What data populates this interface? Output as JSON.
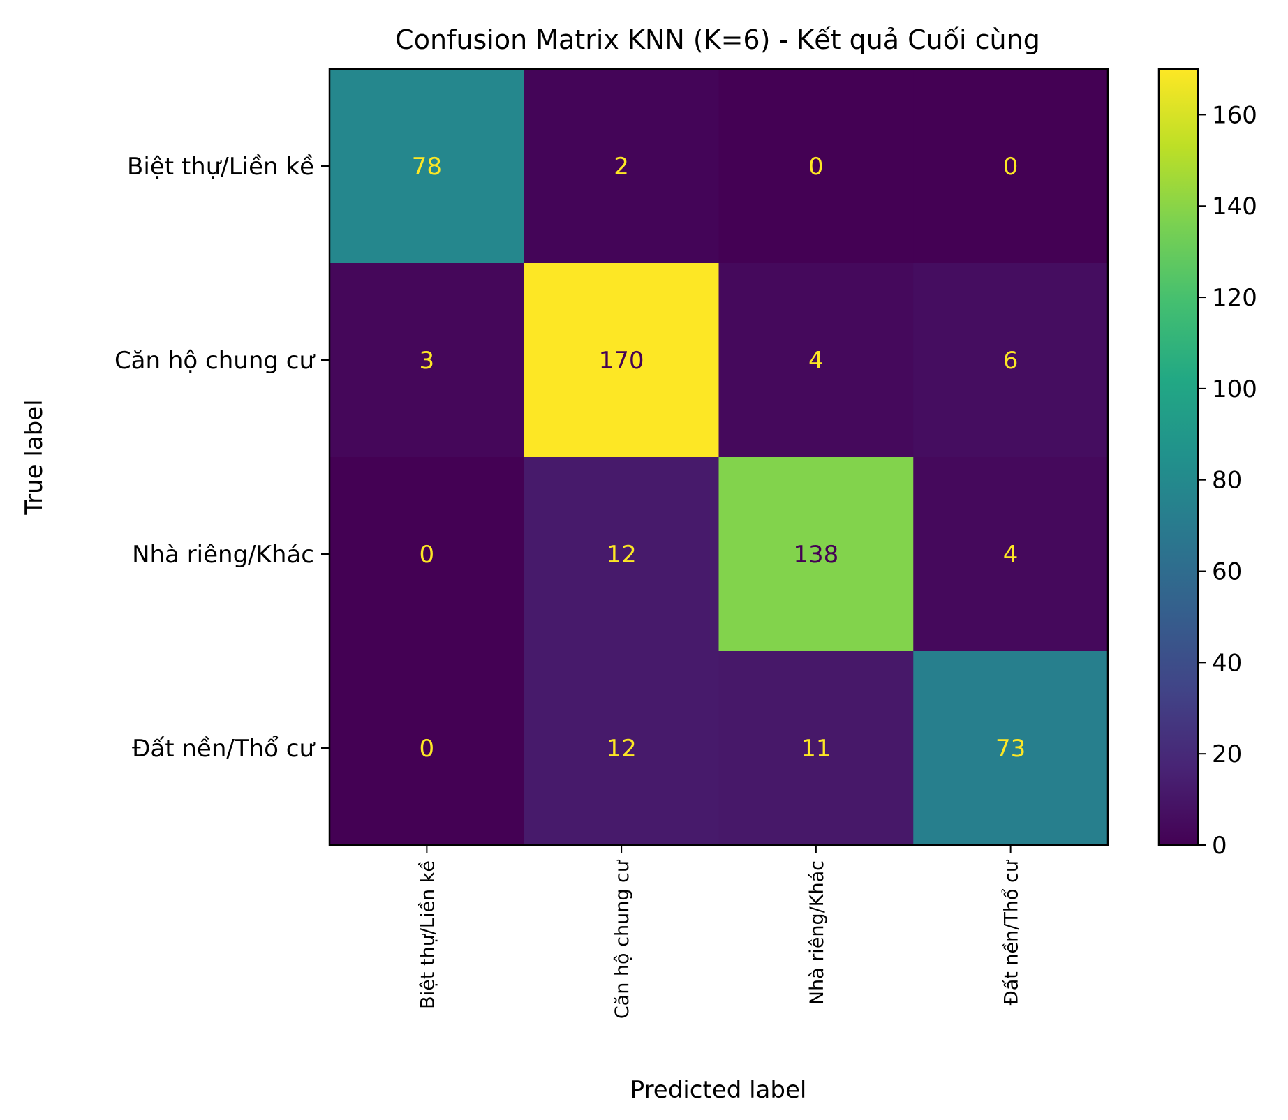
{
  "chart_data": {
    "type": "heatmap",
    "title": "Confusion Matrix KNN (K=6) - Kết quả Cuối cùng",
    "xlabel": "Predicted label",
    "ylabel": "True label",
    "row_labels": [
      "Biệt thự/Liền kề",
      "Căn hộ chung cư",
      "Nhà riêng/Khác",
      "Đất nền/Thổ cư"
    ],
    "col_labels": [
      "Biệt thự/Liền kề",
      "Căn hộ chung cư",
      "Nhà riêng/Khác",
      "Đất nền/Thổ cư"
    ],
    "matrix": [
      [
        78,
        2,
        0,
        0
      ],
      [
        3,
        170,
        4,
        6
      ],
      [
        0,
        12,
        138,
        4
      ],
      [
        0,
        12,
        11,
        73
      ]
    ],
    "colormap": "viridis",
    "colorbar": {
      "vmin": 0,
      "vmax": 170,
      "ticks": [
        0,
        20,
        40,
        60,
        80,
        100,
        120,
        140,
        160
      ]
    },
    "grid": false,
    "colors": {
      "text_on_dark": "#fde725",
      "text_on_light": "#440154"
    }
  }
}
